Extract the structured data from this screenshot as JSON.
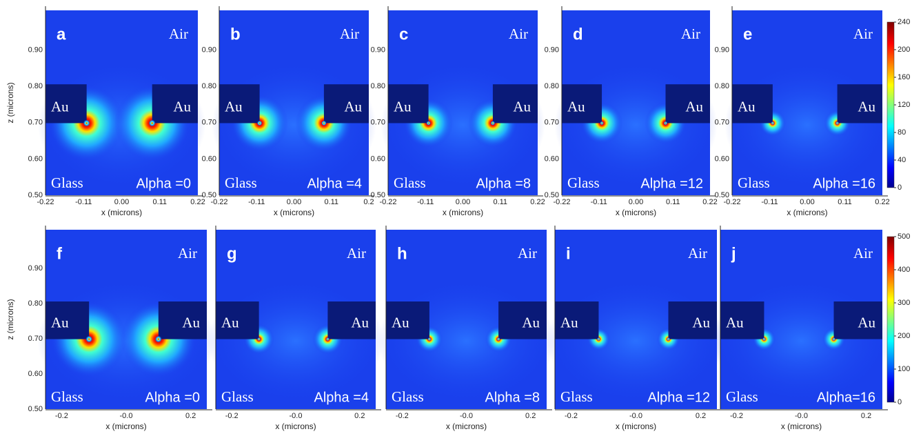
{
  "rows": [
    {
      "y_axis_label": "z (microns)",
      "colorbar_ticks": [
        "0",
        "40",
        "80",
        "120",
        "160",
        "200",
        "240"
      ],
      "panels": [
        {
          "letter": "a",
          "air": "Air",
          "au_left": "Au",
          "au_right": "Au",
          "glass": "Glass",
          "alpha": "Alpha =0",
          "x_label": "x (microns)",
          "x_ticks": [
            "-0.22",
            "-0.11",
            "0.00",
            "0.11",
            "0.22"
          ],
          "y_ticks": [
            "0.50",
            "0.60",
            "0.70",
            "0.80",
            "0.90"
          ]
        },
        {
          "letter": "b",
          "air": "Air",
          "au_left": "Au",
          "au_right": "Au",
          "glass": "Glass",
          "alpha": "Alpha =4",
          "x_label": "x (microns)",
          "x_ticks": [
            "-0.22",
            "-0.11",
            "0.00",
            "0.11",
            "0.2"
          ],
          "y_ticks": [
            "0.50",
            "0.60",
            "0.70",
            "0.80",
            "0.90"
          ]
        },
        {
          "letter": "c",
          "air": "Air",
          "au_left": "Au",
          "au_right": "Au",
          "glass": "Glass",
          "alpha": "Alpha =8",
          "x_label": "x (microns)",
          "x_ticks": [
            "-0.22",
            "-0.11",
            "0.00",
            "0.11",
            "0.22"
          ],
          "y_ticks": [
            "0.50",
            "0.60",
            "0.70",
            "0.80",
            "0.90"
          ]
        },
        {
          "letter": "d",
          "air": "Air",
          "au_left": "Au",
          "au_right": "Au",
          "glass": "Glass",
          "alpha": "Alpha =12",
          "x_label": "x (microns)",
          "x_ticks": [
            "-0.22",
            "-0.11",
            "0.00",
            "0.11",
            "0.22"
          ],
          "y_ticks": [
            "0.50",
            "0.60",
            "0.70",
            "0.80",
            "0.90"
          ]
        },
        {
          "letter": "e",
          "air": "Air",
          "au_left": "Au",
          "au_right": "Au",
          "glass": "Glass",
          "alpha": "Alpha =16",
          "x_label": "x (microns)",
          "x_ticks": [
            "-0.22",
            "-0.11",
            "0.00",
            "0.11",
            "0.22"
          ],
          "y_ticks": [
            "0.50",
            "0.60",
            "0.70",
            "0.80",
            "0.90"
          ]
        }
      ]
    },
    {
      "y_axis_label": "z (microns)",
      "colorbar_ticks": [
        "0",
        "100",
        "200",
        "300",
        "400",
        "500"
      ],
      "panels": [
        {
          "letter": "f",
          "air": "Air",
          "au_left": "Au",
          "au_right": "Au",
          "glass": "Glass",
          "alpha": "Alpha =0",
          "x_label": "x (microns)",
          "x_ticks": [
            "-0.2",
            "-0.0",
            "0.2"
          ],
          "y_ticks": [
            "0.50",
            "0.60",
            "0.70",
            "0.80",
            "0.90"
          ]
        },
        {
          "letter": "g",
          "air": "Air",
          "au_left": "Au",
          "au_right": "Au",
          "glass": "Glass",
          "alpha": "Alpha =4",
          "x_label": "x (microns)",
          "x_ticks": [
            "-0.2",
            "-0.0",
            "0.2"
          ]
        },
        {
          "letter": "h",
          "air": "Air",
          "au_left": "Au",
          "au_right": "Au",
          "glass": "Glass",
          "alpha": "Alpha =8",
          "x_label": "x (microns)",
          "x_ticks": [
            "-0.2",
            "-0.0",
            "0.2"
          ]
        },
        {
          "letter": "i",
          "air": "Air",
          "au_left": "Au",
          "au_right": "Au",
          "glass": "Glass",
          "alpha": "Alpha =12",
          "x_label": "x (microns)",
          "x_ticks": [
            "-0.2",
            "-0.0",
            "0.2"
          ]
        },
        {
          "letter": "j",
          "air": "Air",
          "au_left": "Au",
          "au_right": "Au",
          "glass": "Glass",
          "alpha": "Alpha=16",
          "x_label": "x (microns)",
          "x_ticks": [
            "-0.2",
            "-0.0",
            "0.2"
          ]
        }
      ]
    }
  ]
}
